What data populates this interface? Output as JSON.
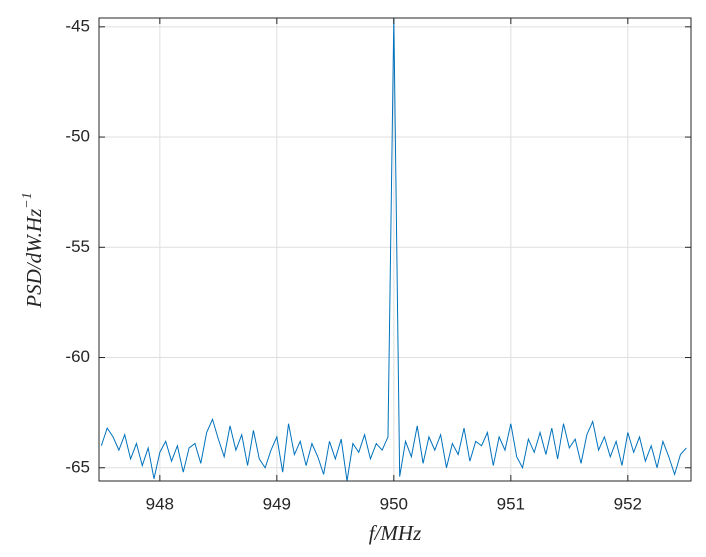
{
  "chart_data": {
    "type": "line",
    "xlabel": "f/MHz",
    "ylabel": {
      "text": "PSD/dW.Hz",
      "superscript": "−1"
    },
    "x": [
      947.5,
      947.55,
      947.6,
      947.65,
      947.7,
      947.75,
      947.8,
      947.85,
      947.9,
      947.95,
      948,
      948.05,
      948.1,
      948.15,
      948.2,
      948.25,
      948.3,
      948.35,
      948.4,
      948.45,
      948.5,
      948.55,
      948.6,
      948.65,
      948.7,
      948.75,
      948.8,
      948.85,
      948.9,
      948.95,
      949,
      949.05,
      949.1,
      949.15,
      949.2,
      949.25,
      949.3,
      949.35,
      949.4,
      949.45,
      949.5,
      949.55,
      949.6,
      949.65,
      949.7,
      949.75,
      949.8,
      949.85,
      949.9,
      949.95,
      950,
      950.05,
      950.1,
      950.15,
      950.2,
      950.25,
      950.3,
      950.35,
      950.4,
      950.45,
      950.5,
      950.55,
      950.6,
      950.65,
      950.7,
      950.75,
      950.8,
      950.85,
      950.9,
      950.95,
      951,
      951.05,
      951.1,
      951.15,
      951.2,
      951.25,
      951.3,
      951.35,
      951.4,
      951.45,
      951.5,
      951.55,
      951.6,
      951.65,
      951.7,
      951.75,
      951.8,
      951.85,
      951.9,
      951.95,
      952,
      952.05,
      952.1,
      952.15,
      952.2,
      952.25,
      952.3,
      952.35,
      952.4,
      952.45,
      952.5
    ],
    "series": [
      {
        "color": "#0072bd",
        "values": [
          -64.0,
          -63.2,
          -63.6,
          -64.2,
          -63.5,
          -64.6,
          -63.9,
          -64.9,
          -64.1,
          -65.5,
          -64.3,
          -63.8,
          -64.7,
          -64.0,
          -65.2,
          -64.1,
          -63.9,
          -64.8,
          -63.4,
          -62.8,
          -63.7,
          -64.5,
          -63.1,
          -64.2,
          -63.5,
          -64.9,
          -63.3,
          -64.6,
          -65.0,
          -64.2,
          -63.6,
          -65.2,
          -63.0,
          -64.4,
          -63.8,
          -64.9,
          -63.9,
          -64.5,
          -65.3,
          -63.8,
          -64.6,
          -63.7,
          -65.6,
          -63.9,
          -64.3,
          -63.5,
          -64.6,
          -63.9,
          -64.2,
          -63.6,
          -44.6,
          -65.4,
          -63.8,
          -64.5,
          -63.1,
          -64.8,
          -63.6,
          -64.2,
          -63.5,
          -65.0,
          -63.9,
          -64.4,
          -63.2,
          -64.7,
          -63.8,
          -64.0,
          -63.4,
          -64.9,
          -63.6,
          -64.2,
          -63.0,
          -64.5,
          -65.0,
          -63.7,
          -64.3,
          -63.4,
          -64.4,
          -63.2,
          -64.6,
          -63.0,
          -64.1,
          -63.7,
          -64.8,
          -63.5,
          -62.9,
          -64.2,
          -63.6,
          -64.5,
          -63.8,
          -64.9,
          -63.4,
          -64.3,
          -63.6,
          -64.7,
          -64.0,
          -65.0,
          -63.8,
          -64.5,
          -65.3,
          -64.4,
          -64.1
        ]
      }
    ],
    "xlim": [
      947.48,
      952.54
    ],
    "ylim": [
      -65.6,
      -44.6
    ],
    "xticks": [
      948,
      949,
      950,
      951,
      952
    ],
    "yticks": [
      -65,
      -60,
      -55,
      -50,
      -45
    ],
    "grid": true
  }
}
